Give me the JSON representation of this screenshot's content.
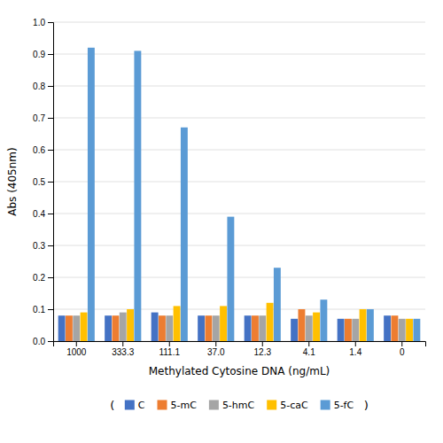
{
  "chart_data": {
    "type": "bar",
    "categories": [
      "1000",
      "333.3",
      "111.1",
      "37.0",
      "12.3",
      "4.1",
      "1.4",
      "0"
    ],
    "series": [
      {
        "name": "C",
        "color": "#4472C4",
        "values": [
          0.08,
          0.08,
          0.09,
          0.08,
          0.08,
          0.07,
          0.07,
          0.08
        ]
      },
      {
        "name": "5-mC",
        "color": "#ED7D31",
        "values": [
          0.08,
          0.08,
          0.08,
          0.08,
          0.08,
          0.1,
          0.07,
          0.08
        ]
      },
      {
        "name": "5-hmC",
        "color": "#A5A5A5",
        "values": [
          0.08,
          0.09,
          0.08,
          0.08,
          0.08,
          0.08,
          0.07,
          0.07
        ]
      },
      {
        "name": "5-caC",
        "color": "#FFC000",
        "values": [
          0.09,
          0.1,
          0.11,
          0.11,
          0.12,
          0.09,
          0.1,
          0.07
        ]
      },
      {
        "name": "5-fC",
        "color": "#5B9BD5",
        "values": [
          0.92,
          0.91,
          0.67,
          0.39,
          0.23,
          0.13,
          0.1,
          0.07
        ]
      }
    ],
    "xlabel": "Methylated Cytosine DNA (ng/mL)",
    "ylabel": "Abs (405nm)",
    "ylim": [
      0.0,
      1.0
    ],
    "yticks": [
      {
        "value": 0.0,
        "label": "0.0"
      },
      0.1,
      0.2,
      0.3,
      0.4,
      0.5,
      0.6,
      0.7,
      0.8,
      0.9,
      {
        "value": 1.0,
        "label": "1.0"
      }
    ],
    "grid": true,
    "legend": "bottom",
    "annotations": [
      "(",
      ")"
    ]
  }
}
